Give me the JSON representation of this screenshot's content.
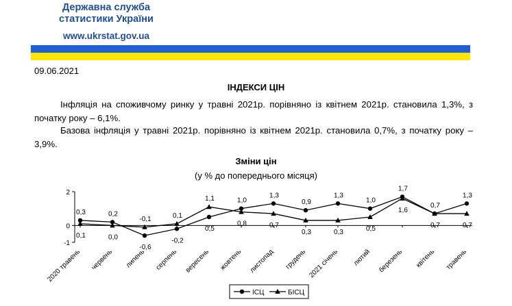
{
  "header": {
    "agency_line1": "Державна служба",
    "agency_line2": "статистики України",
    "url": "www.ukrstat.gov.ua",
    "colors": {
      "blue": "#1f5fd4",
      "yellow": "#ffe500",
      "text": "#1f4e9a"
    }
  },
  "date": "09.06.2021",
  "title": "ІНДЕКСИ ЦІН",
  "paragraphs": [
    "Інфляція на споживчому ринку у травні 2021р. порівняно із квітнем 2021р. становила 1,3%, з початку року – 6,1%.",
    "Базова інфляція у травні 2021р. порівняно із квітнем 2021р. становила 0,7%, з початку року – 3,9%."
  ],
  "chart_data": {
    "type": "line",
    "title": "Зміни цін",
    "subtitle": "(у % до попереднього місяця)",
    "categories": [
      "2020 травень",
      "червень",
      "липень",
      "серпень",
      "вересень",
      "жовтень",
      "листопад",
      "грудень",
      "2021 січень",
      "лютий",
      "березень",
      "квітень",
      "травень"
    ],
    "ylim": [
      -1,
      2
    ],
    "yticks": [
      "2",
      "0",
      "-1"
    ],
    "legend_position": "bottom",
    "series": [
      {
        "name": "ІСЦ",
        "marker": "circle",
        "values": [
          0.3,
          0.2,
          -0.6,
          -0.2,
          0.5,
          1.0,
          1.3,
          0.9,
          1.3,
          1.0,
          1.7,
          0.7,
          1.3
        ],
        "labels": [
          "0,3",
          "0,2",
          "-0,6",
          "-0,2",
          "0,5",
          "1,0",
          "1,3",
          "0,9",
          "1,3",
          "1,0",
          "1,7",
          "0,7",
          "1,3"
        ]
      },
      {
        "name": "БІСЦ",
        "marker": "triangle",
        "values": [
          0.1,
          0.0,
          -0.1,
          0.1,
          1.1,
          0.8,
          0.7,
          0.3,
          0.3,
          0.5,
          1.6,
          0.7,
          0.7
        ],
        "labels": [
          "0,1",
          "0,0",
          "-0,1",
          "0,1",
          "1,1",
          "0,8",
          "0,7",
          "0,3",
          "0,3",
          "0,5",
          "1,6",
          "0,7",
          "0,7"
        ]
      }
    ]
  }
}
